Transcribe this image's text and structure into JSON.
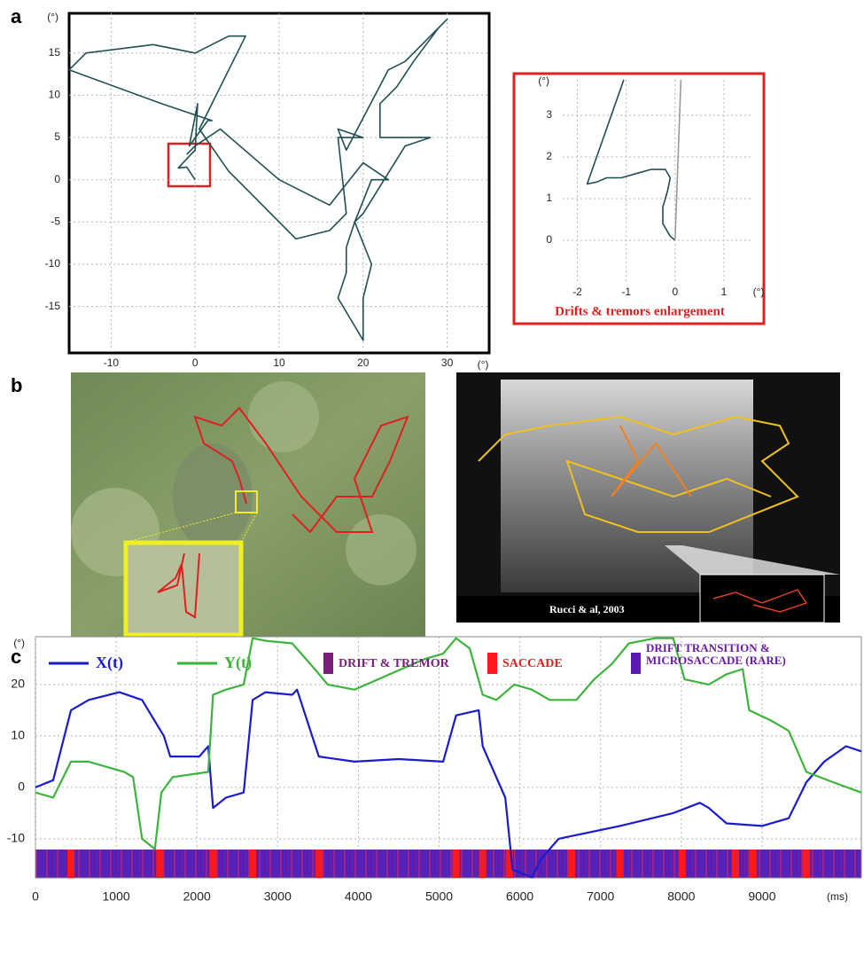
{
  "panels": [
    "a",
    "b",
    "c"
  ],
  "photo_credit": "Rucci & al, 2003",
  "chart_data": [
    {
      "type": "line",
      "x_unit": "(°)",
      "y_unit": "(°)",
      "xlim": [
        -15,
        35
      ],
      "ylim": [
        -20.5,
        19.7
      ],
      "xticks": [
        -10,
        0,
        10,
        20,
        30
      ],
      "yticks": [
        -15,
        -10,
        -5,
        0,
        5,
        10,
        15
      ],
      "grid": true,
      "series": [
        {
          "color": "#1f4f52",
          "x": [
            0,
            -1,
            -2,
            -0.5,
            0,
            0.3,
            -0.7,
            1.5,
            2,
            -4,
            -15,
            -13,
            -5,
            0,
            4,
            6,
            4,
            1,
            0.5,
            4,
            7,
            9,
            12,
            16,
            17,
            18,
            17,
            20,
            17,
            18,
            23,
            25,
            28,
            30,
            29,
            26,
            24,
            22,
            22,
            27,
            28,
            25,
            20,
            19,
            18,
            18,
            17,
            20,
            20,
            21,
            19,
            21,
            23,
            20,
            16,
            10,
            3,
            0,
            -1
          ],
          "values": [
            0,
            1.5,
            1.4,
            3,
            3.5,
            9,
            4,
            7,
            7,
            9,
            13,
            15,
            16,
            15,
            17,
            17,
            13,
            7,
            6,
            1,
            -2,
            -4,
            -7,
            -6,
            -5,
            -4,
            5,
            5,
            6,
            3.5,
            13,
            14,
            17,
            19,
            18,
            14,
            11,
            9,
            5,
            5,
            5,
            4,
            -4,
            -5,
            -8,
            -11,
            -14,
            -19,
            -14,
            -10,
            -5,
            0,
            0,
            2,
            -3,
            0,
            6,
            4,
            3
          ]
        }
      ]
    },
    {
      "type": "line",
      "x_unit": "(°)",
      "y_unit": "(°)",
      "caption": "Drifts & tremors enlargement",
      "xlim": [
        -2.3,
        1.6
      ],
      "ylim": [
        -1,
        3.85
      ],
      "xticks": [
        -2,
        -1,
        0,
        1
      ],
      "yticks": [
        0,
        1,
        2,
        3
      ],
      "grid": true,
      "series": [
        {
          "color": "#1f4f52",
          "x": [
            0,
            -0.1,
            -0.25,
            -0.25,
            -0.2,
            -0.15,
            -0.1,
            -0.2,
            -0.5,
            -0.8,
            -1.1,
            -1.4,
            -1.6,
            -1.8,
            -1.05
          ],
          "values": [
            0,
            0.1,
            0.4,
            0.8,
            1.0,
            1.2,
            1.5,
            1.7,
            1.7,
            1.6,
            1.5,
            1.5,
            1.4,
            1.35,
            3.85
          ]
        },
        {
          "color": "#9a9a9a",
          "x": [
            0,
            0.12
          ],
          "values": [
            0,
            3.85
          ]
        }
      ]
    },
    {
      "type": "line",
      "x_unit": "(ms)",
      "y_unit": "(°)",
      "xlim": [
        0,
        10230
      ],
      "ylim": [
        -17.6,
        29.3
      ],
      "xticks": [
        0,
        1000,
        2000,
        3000,
        4000,
        5000,
        6000,
        7000,
        8000,
        9000
      ],
      "yticks": [
        -10,
        0,
        10,
        20
      ],
      "grid": true,
      "series": [
        {
          "name": "X(t)",
          "color": "#1a1ad0",
          "x": [
            0,
            220,
            440,
            660,
            1040,
            1320,
            1590,
            1670,
            2030,
            2140,
            2200,
            2360,
            2580,
            2690,
            2850,
            3180,
            3240,
            3510,
            3950,
            4500,
            5050,
            5210,
            5490,
            5540,
            5820,
            5910,
            6150,
            6260,
            6480,
            7240,
            7900,
            8230,
            8340,
            8560,
            9000,
            9330,
            9550,
            9770,
            10040,
            10230
          ],
          "values": [
            0,
            1.4,
            15,
            17,
            18.5,
            17,
            10,
            6,
            6,
            8,
            -4,
            -2,
            -1,
            17,
            18.5,
            18,
            19,
            6,
            5,
            5.5,
            5,
            14,
            15,
            8,
            -2,
            -16,
            -17.5,
            -14,
            -10,
            -7.5,
            -5,
            -3,
            -4,
            -7,
            -7.5,
            -6,
            1,
            5,
            8,
            7
          ]
        },
        {
          "name": "Y(t)",
          "color": "#3cb43c",
          "x": [
            0,
            220,
            440,
            660,
            1100,
            1210,
            1320,
            1480,
            1560,
            1700,
            2140,
            2200,
            2360,
            2580,
            2690,
            2850,
            3180,
            3460,
            3620,
            3950,
            4390,
            4830,
            5050,
            5210,
            5380,
            5540,
            5710,
            5930,
            6150,
            6370,
            6700,
            6920,
            7140,
            7350,
            7680,
            7900,
            8040,
            8340,
            8560,
            8760,
            8840,
            9110,
            9330,
            9550,
            9880,
            10230
          ],
          "values": [
            -1,
            -2,
            5,
            5,
            3,
            2,
            -10,
            -12,
            -1,
            2,
            3,
            18,
            19,
            20,
            29,
            28.5,
            28,
            23,
            20,
            19,
            22,
            25,
            26,
            29,
            27,
            18,
            17,
            20,
            19,
            17,
            17,
            21,
            24,
            28,
            29,
            29,
            21,
            20,
            22,
            23,
            15,
            13,
            11,
            3,
            1,
            -1
          ]
        }
      ],
      "event_legend": [
        {
          "name": "DRIFT & TREMOR",
          "color": "#7b1e7a"
        },
        {
          "name": "SACCADE",
          "color": "#ff1a1a"
        },
        {
          "name": "DRIFT TRANSITION & MICROSACCADE (RARE)",
          "color": "#5a1ab4"
        }
      ],
      "saccade_times": [
        440,
        1540,
        2200,
        2690,
        3510,
        5210,
        5540,
        5870,
        6640,
        7240,
        8010,
        8670,
        8890,
        9550
      ]
    }
  ]
}
